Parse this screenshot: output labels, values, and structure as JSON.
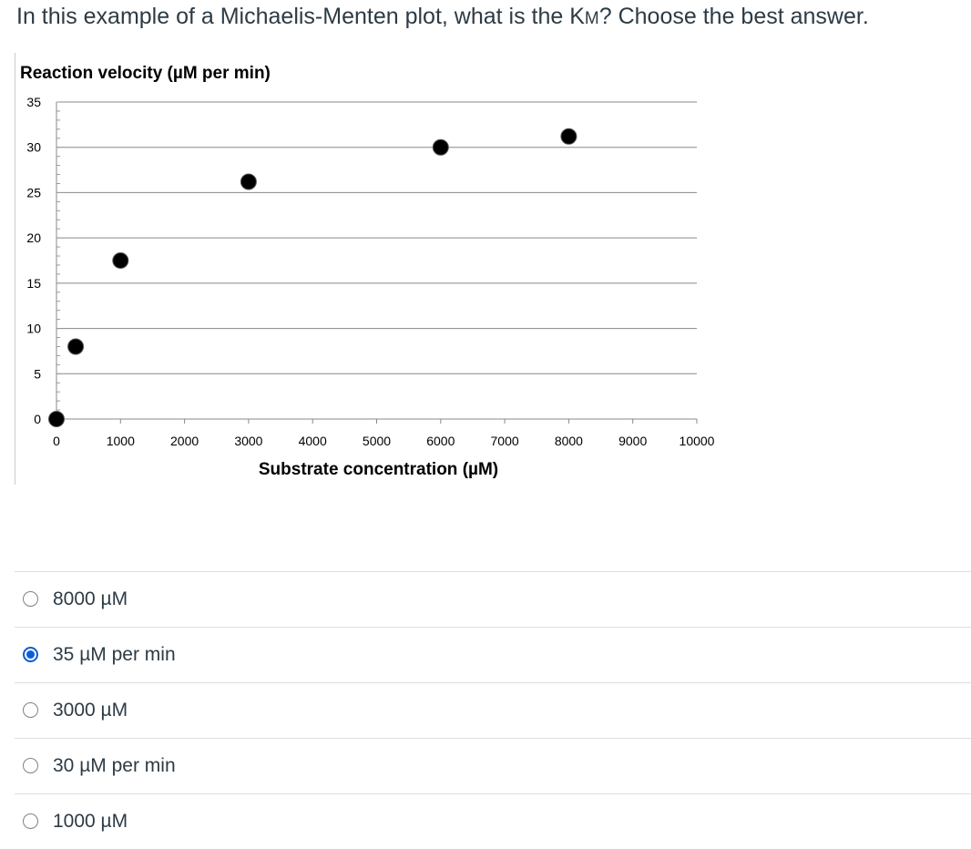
{
  "question": {
    "prefix": "In this example of a Michaelis-Menten plot, what is the K",
    "km_subscript": "M",
    "suffix": "?  Choose the best answer."
  },
  "chart_data": {
    "type": "scatter",
    "title": "Reaction velocity (µM per min)",
    "xlabel": "Substrate concentration (µM)",
    "ylabel": "Reaction velocity (µM per min)",
    "xlim": [
      0,
      10000
    ],
    "ylim": [
      0,
      35
    ],
    "x_ticks": [
      "0",
      "1000",
      "2000",
      "3000",
      "4000",
      "5000",
      "6000",
      "7000",
      "8000",
      "9000",
      "10000"
    ],
    "y_ticks": [
      "0",
      "5",
      "10",
      "15",
      "20",
      "25",
      "30",
      "35"
    ],
    "grid": true,
    "x": [
      0,
      300,
      1000,
      3000,
      6000,
      8000
    ],
    "y": [
      0,
      8,
      17.5,
      26.2,
      30,
      31.2
    ],
    "marker_color": "#000000"
  },
  "choices": [
    {
      "label": "8000 µM",
      "selected": false
    },
    {
      "label": "35 µM per min",
      "selected": true
    },
    {
      "label": "3000 µM",
      "selected": false
    },
    {
      "label": "30 µM per min",
      "selected": false
    },
    {
      "label": "1000 µM",
      "selected": false
    }
  ],
  "colors": {
    "text": "#2d3b45",
    "radio_selected": "#0b5ed7",
    "divider": "#dcdfe2"
  }
}
